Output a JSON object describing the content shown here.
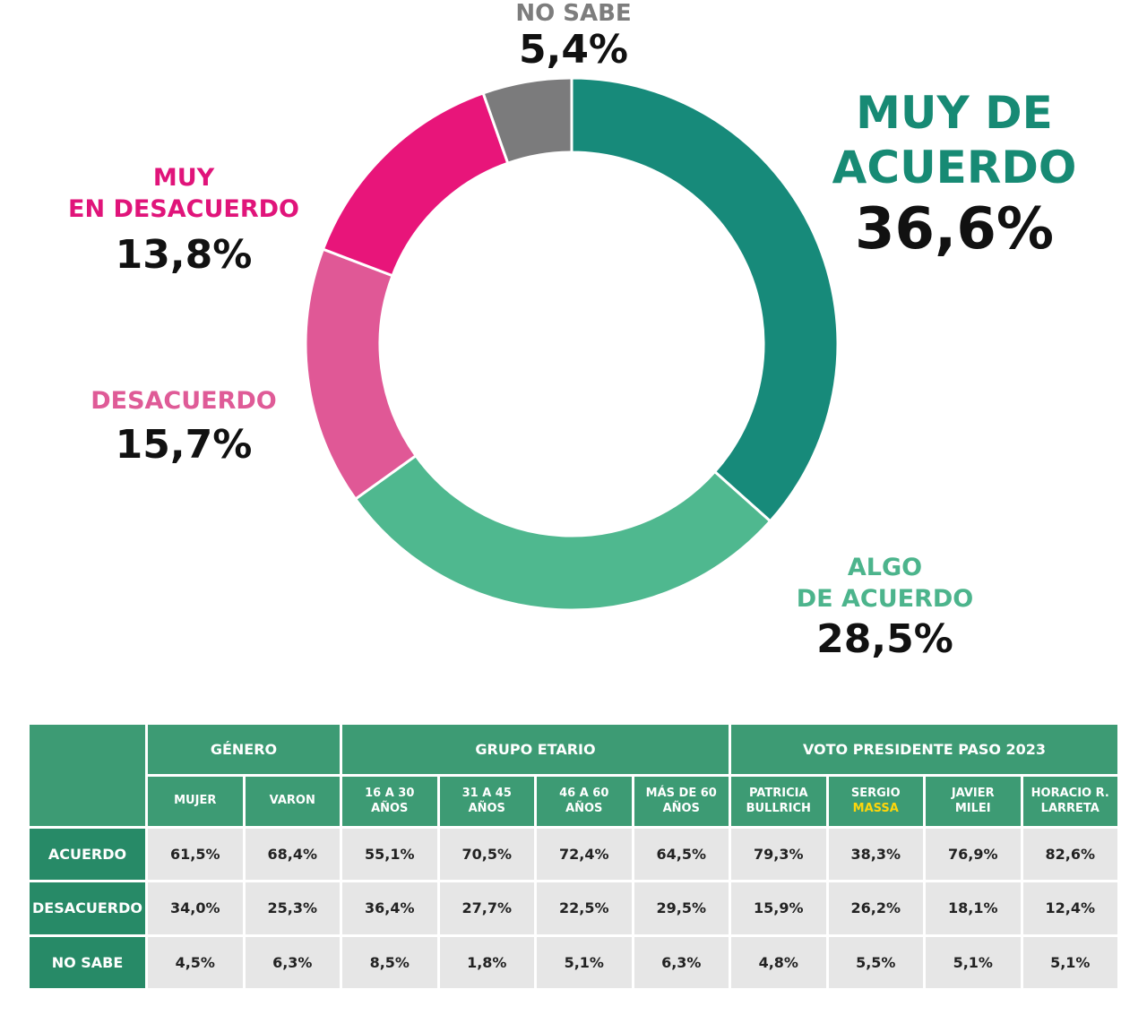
{
  "chart_data": {
    "type": "pie",
    "donut": true,
    "categories": [
      "MUY DE ACUERDO",
      "ALGO DE ACUERDO",
      "DESACUERDO",
      "MUY EN DESACUERDO",
      "NO SABE"
    ],
    "values": [
      36.6,
      28.5,
      15.7,
      13.8,
      5.4
    ],
    "value_labels": [
      "36,6%",
      "28,5%",
      "15,7%",
      "13,8%",
      "5,4%"
    ],
    "colors": [
      "#178a7a",
      "#4fb88f",
      "#e05896",
      "#e8157a",
      "#7b7b7c"
    ]
  },
  "labels": {
    "nosabe": {
      "name": "NO SABE",
      "value": "5,4%"
    },
    "muyacuerdo": {
      "name1": "MUY DE",
      "name2": "ACUERDO",
      "value": "36,6%"
    },
    "muydesac": {
      "name1": "MUY",
      "name2": "EN DESACUERDO",
      "value": "13,8%"
    },
    "desac": {
      "name": "DESACUERDO",
      "value": "15,7%"
    },
    "algo": {
      "name1": "ALGO",
      "name2": "DE ACUERDO",
      "value": "28,5%"
    }
  },
  "table": {
    "groups": [
      "GÉNERO",
      "GRUPO ETARIO",
      "VOTO PRESIDENTE PASO 2023"
    ],
    "columns": [
      [
        "MUJER"
      ],
      [
        "VARON"
      ],
      [
        "16 A 30",
        "AÑOS"
      ],
      [
        "31 A 45",
        "AÑOS"
      ],
      [
        "46 A 60",
        "AÑOS"
      ],
      [
        "MÁS DE 60",
        "AÑOS"
      ],
      [
        "PATRICIA",
        "BULLRICH"
      ],
      [
        "SERGIO",
        "MASSA"
      ],
      [
        "JAVIER",
        "MILEI"
      ],
      [
        "HORACIO R.",
        "LARRETA"
      ]
    ],
    "rows": [
      {
        "label": "ACUERDO",
        "values": [
          "61,5%",
          "68,4%",
          "55,1%",
          "70,5%",
          "72,4%",
          "64,5%",
          "79,3%",
          "38,3%",
          "76,9%",
          "82,6%"
        ]
      },
      {
        "label": "DESACUERDO",
        "values": [
          "34,0%",
          "25,3%",
          "36,4%",
          "27,7%",
          "22,5%",
          "29,5%",
          "15,9%",
          "26,2%",
          "18,1%",
          "12,4%"
        ]
      },
      {
        "label": "NO SABE",
        "values": [
          "4,5%",
          "6,3%",
          "8,5%",
          "1,8%",
          "5,1%",
          "6,3%",
          "4,8%",
          "5,5%",
          "5,1%",
          "5,1%"
        ]
      }
    ]
  }
}
